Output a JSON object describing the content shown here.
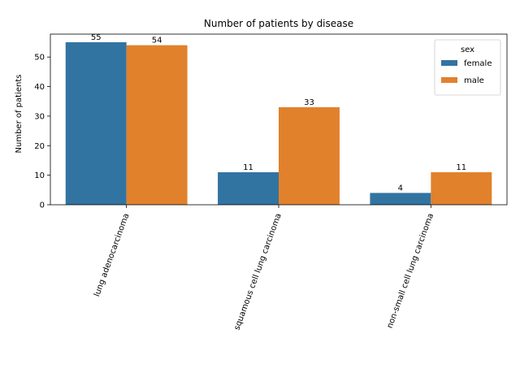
{
  "chart_data": {
    "type": "bar",
    "title": "Number of patients by disease",
    "xlabel": "",
    "ylabel": "Number of patients",
    "categories": [
      "lung adenocarcinoma",
      "squamous cell lung carcinoma",
      "non-small cell lung carcinoma"
    ],
    "series": [
      {
        "name": "female",
        "color": "#3274a1",
        "values": [
          55,
          11,
          4
        ]
      },
      {
        "name": "male",
        "color": "#e1812c",
        "values": [
          54,
          33,
          11
        ]
      }
    ],
    "ylim": [
      0,
      57.75
    ],
    "yticks": [
      0,
      10,
      20,
      30,
      40,
      50
    ],
    "legend": {
      "title": "sex",
      "placement": "top-right"
    },
    "grid": false,
    "data_labels": true,
    "xtick_rotation_deg": 70
  }
}
